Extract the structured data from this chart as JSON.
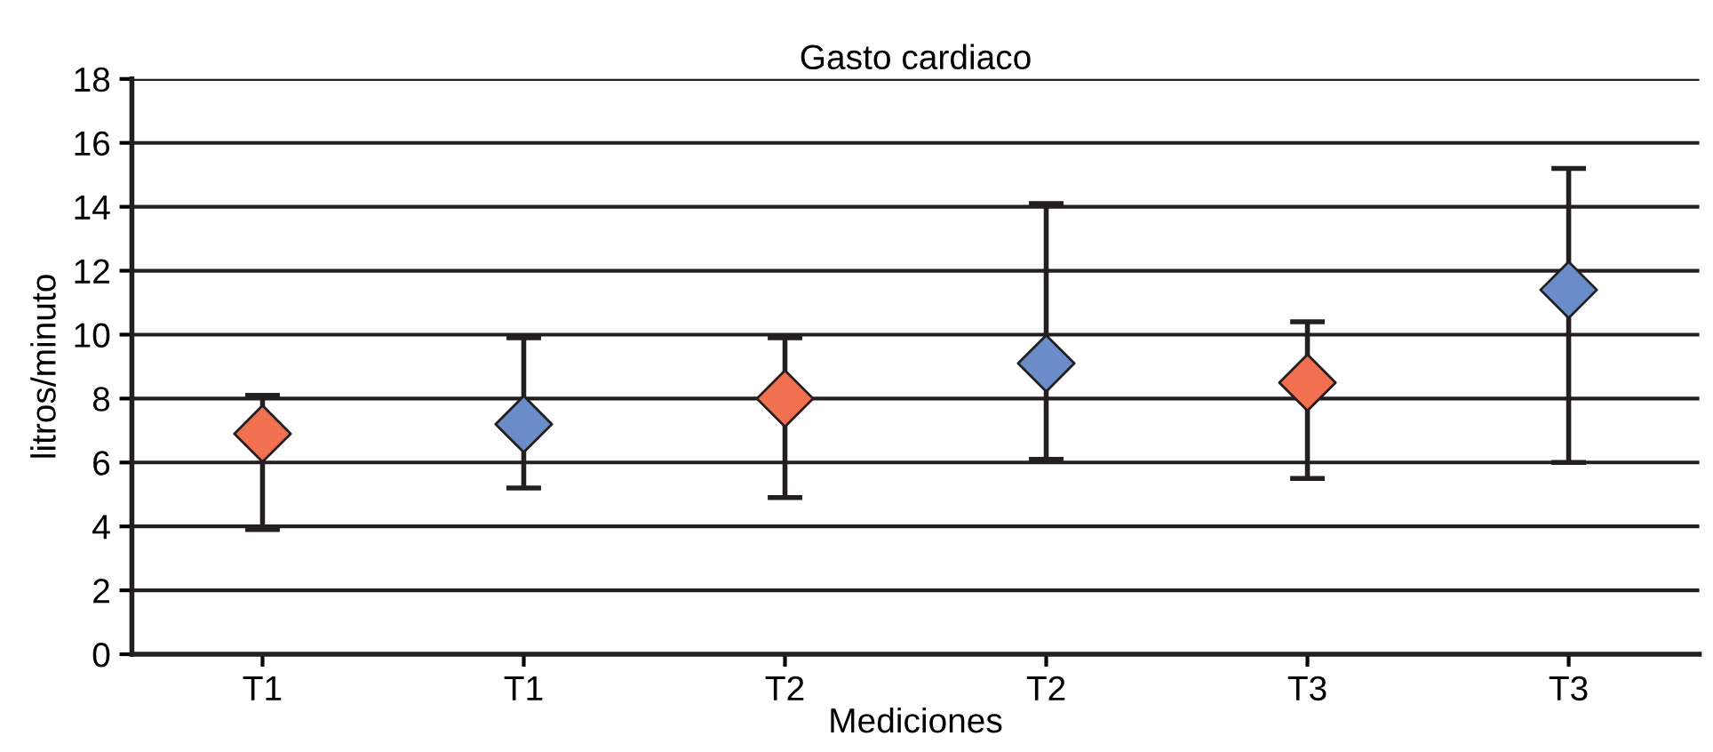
{
  "chart_data": {
    "type": "scatter",
    "title": "Gasto cardiaco",
    "xlabel": "Mediciones",
    "ylabel": "litros/minuto",
    "categories": [
      "T1",
      "T1",
      "T2",
      "T2",
      "T3",
      "T3"
    ],
    "series": [
      {
        "values": [
          6.9,
          7.2,
          8.0,
          9.1,
          8.5,
          11.4
        ],
        "colors": [
          "#f07050",
          "#6a8cc8",
          "#f07050",
          "#6a8cc8",
          "#f07050",
          "#6a8cc8"
        ],
        "errors": [
          [
            3.9,
            8.1
          ],
          [
            5.2,
            9.9
          ],
          [
            4.9,
            9.9
          ],
          [
            6.1,
            14.1
          ],
          [
            5.5,
            10.4
          ],
          [
            6.0,
            15.2
          ]
        ]
      }
    ],
    "ylim": [
      0,
      18
    ],
    "yticks": [
      0,
      2,
      4,
      6,
      8,
      10,
      12,
      14,
      16,
      18
    ],
    "grid": "y",
    "marker": "diamond",
    "legend": false
  }
}
